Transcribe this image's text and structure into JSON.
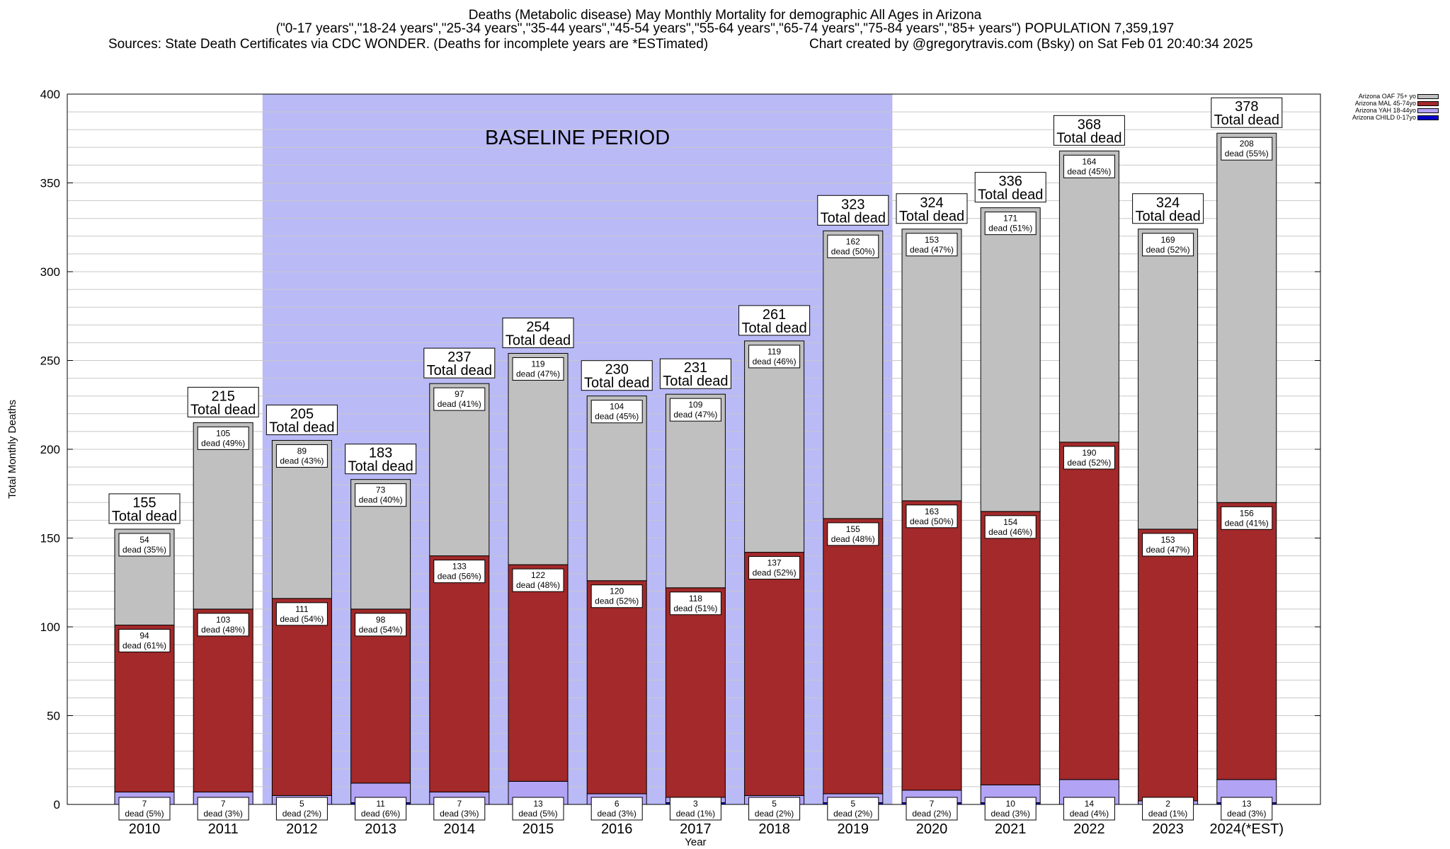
{
  "title": {
    "line1": "Deaths (Metabolic disease) May Monthly Mortality for demographic All Ages in Arizona",
    "line2": "(\"0-17 years\",\"18-24 years\",\"25-34 years\",\"35-44 years\",\"45-54 years\",\"55-64 years\",\"65-74 years\",\"75-84 years\",\"85+ years\") POPULATION 7,359,197",
    "sources": "Sources: State Death Certificates via CDC WONDER. (Deaths for incomplete years are *ESTimated)",
    "credit": "Chart created by @gregorytravis.com (Bsky) on Sat Feb 01 20:40:34 2025"
  },
  "chart_data": {
    "type": "bar",
    "stacked": true,
    "xlabel": "Year",
    "ylabel": "Total Monthly Deaths",
    "ylim": [
      0,
      400
    ],
    "yticks": [
      0,
      50,
      100,
      150,
      200,
      250,
      300,
      350,
      400
    ],
    "grid": true,
    "legend_position": "top-right",
    "baseline_label": "BASELINE PERIOD",
    "baseline_range": [
      "2012",
      "2019"
    ],
    "categories": [
      "2010",
      "2011",
      "2012",
      "2013",
      "2014",
      "2015",
      "2016",
      "2017",
      "2018",
      "2019",
      "2020",
      "2021",
      "2022",
      "2023",
      "2024(*EST)"
    ],
    "series": [
      {
        "name": "Arizona CHILD 0-17yo",
        "color": "#0000cc",
        "values": [
          0,
          0,
          0,
          1,
          0,
          0,
          0,
          1,
          0,
          1,
          1,
          1,
          0,
          0,
          1
        ]
      },
      {
        "name": "Arizona YAH 18-44yo",
        "color": "#b3a3f5",
        "values": [
          7,
          7,
          5,
          11,
          7,
          13,
          6,
          3,
          5,
          5,
          7,
          10,
          14,
          2,
          13
        ],
        "labels": [
          "7\ndead (5%)",
          "7\ndead (3%)",
          "5\ndead (2%)",
          "11\ndead (6%)",
          "7\ndead (3%)",
          "13\ndead (5%)",
          "6\ndead (3%)",
          "3\ndead (1%)",
          "5\ndead (2%)",
          "5\ndead (2%)",
          "7\ndead (2%)",
          "10\ndead (3%)",
          "14\ndead (4%)",
          "2\ndead (1%)",
          "13\ndead (3%)"
        ]
      },
      {
        "name": "Arizona MAL 45-74yo",
        "color": "#a3292a",
        "values": [
          94,
          103,
          111,
          98,
          133,
          122,
          120,
          118,
          137,
          155,
          163,
          154,
          190,
          153,
          156
        ],
        "labels": [
          "94\ndead (61%)",
          "103\ndead (48%)",
          "111\ndead (54%)",
          "98\ndead (54%)",
          "133\ndead (56%)",
          "122\ndead (48%)",
          "120\ndead (52%)",
          "118\ndead (51%)",
          "137\ndead (52%)",
          "155\ndead (48%)",
          "163\ndead (50%)",
          "154\ndead (46%)",
          "190\ndead (52%)",
          "153\ndead (47%)",
          "156\ndead (41%)"
        ]
      },
      {
        "name": "Arizona OAF 75+ yo",
        "color": "#c0c0c0",
        "values": [
          54,
          105,
          89,
          73,
          97,
          119,
          104,
          109,
          119,
          162,
          153,
          171,
          164,
          169,
          208
        ],
        "labels": [
          "54\ndead (35%)",
          "105\ndead (49%)",
          "89\ndead (43%)",
          "73\ndead (40%)",
          "97\ndead (41%)",
          "119\ndead (47%)",
          "104\ndead (45%)",
          "109\ndead (47%)",
          "119\ndead (46%)",
          "162\ndead (50%)",
          "153\ndead (47%)",
          "171\ndead (51%)",
          "164\ndead (45%)",
          "169\ndead (52%)",
          "208\ndead (55%)"
        ]
      }
    ],
    "totals": [
      155,
      215,
      205,
      183,
      237,
      254,
      230,
      231,
      261,
      323,
      324,
      336,
      368,
      324,
      378
    ],
    "total_label_suffix": "Total dead"
  }
}
